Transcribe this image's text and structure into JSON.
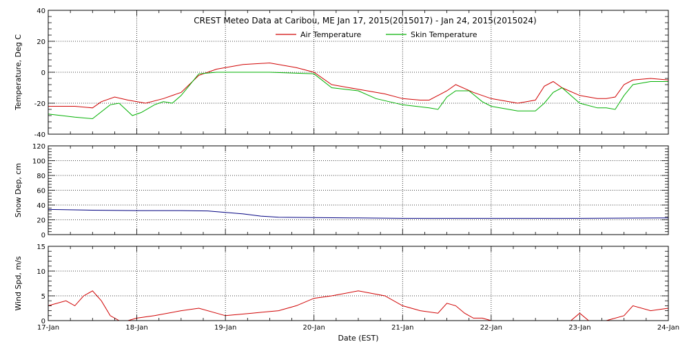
{
  "chart_data": {
    "type": "line",
    "title": "CREST Meteo Data at Caribou, ME   Jan 17, 2015(2015017) - Jan 24, 2015(2015024)",
    "xlabel": "Date (EST)",
    "x_ticks": [
      "17-Jan",
      "18-Jan",
      "19-Jan",
      "20-Jan",
      "21-Jan",
      "22-Jan",
      "23-Jan",
      "24-Jan"
    ],
    "xlim": [
      0,
      7
    ],
    "x_unit": "days since 17-Jan 00:00",
    "grid": true,
    "legend_position": "top-center",
    "panels": [
      {
        "ylabel": "Temperature, Deg C",
        "ylim": [
          -40,
          40
        ],
        "yticks": [
          -40,
          -20,
          0,
          20,
          40
        ],
        "series": [
          {
            "name": "Air Temperature",
            "color": "#d00000",
            "x": [
              0,
              0.3,
              0.5,
              0.6,
              0.75,
              0.9,
              1.1,
              1.3,
              1.5,
              1.7,
              1.9,
              2.0,
              2.2,
              2.5,
              2.8,
              3.0,
              3.2,
              3.5,
              3.8,
              4.0,
              4.2,
              4.3,
              4.5,
              4.6,
              4.8,
              5.0,
              5.2,
              5.3,
              5.5,
              5.6,
              5.7,
              5.8,
              6.0,
              6.2,
              6.3,
              6.4,
              6.5,
              6.6,
              6.8,
              7.0
            ],
            "y": [
              -22,
              -22,
              -23,
              -19,
              -16,
              -18,
              -20,
              -17,
              -13,
              -2,
              2,
              3,
              5,
              6,
              3,
              0,
              -8,
              -11,
              -14,
              -17,
              -18,
              -18,
              -12,
              -8,
              -13,
              -17,
              -19,
              -20,
              -18,
              -9,
              -6,
              -10,
              -15,
              -17,
              -17,
              -16,
              -8,
              -5,
              -4,
              -5
            ]
          },
          {
            "name": "Skin Temperature",
            "color": "#00b000",
            "x": [
              0,
              0.3,
              0.5,
              0.7,
              0.8,
              0.95,
              1.05,
              1.2,
              1.3,
              1.4,
              1.5,
              1.7,
              1.9,
              2.0,
              2.5,
              3.0,
              3.2,
              3.5,
              3.7,
              4.0,
              4.3,
              4.4,
              4.5,
              4.6,
              4.75,
              4.9,
              5.0,
              5.3,
              5.5,
              5.6,
              5.7,
              5.8,
              6.0,
              6.2,
              6.3,
              6.4,
              6.5,
              6.6,
              6.8,
              7.0
            ],
            "y": [
              -27,
              -29,
              -30,
              -21,
              -20,
              -28,
              -26,
              -21,
              -19,
              -20,
              -15,
              -1,
              0,
              0,
              0,
              -1,
              -10,
              -12,
              -17,
              -21,
              -23,
              -24,
              -16,
              -12,
              -12,
              -19,
              -22,
              -25,
              -25,
              -20,
              -13,
              -10,
              -20,
              -23,
              -23,
              -24,
              -15,
              -8,
              -6,
              -6
            ]
          }
        ]
      },
      {
        "ylabel": "Snow Dep, cm",
        "ylim": [
          0,
          120
        ],
        "yticks": [
          0,
          20,
          40,
          60,
          80,
          100,
          120
        ],
        "series": [
          {
            "name": "Snow Depth",
            "color": "#000080",
            "x": [
              0,
              0.5,
              1.0,
              1.5,
              1.8,
              2.0,
              2.2,
              2.4,
              2.6,
              3.0,
              3.5,
              4.0,
              5.0,
              6.0,
              7.0
            ],
            "y": [
              34,
              33,
              32.5,
              32.5,
              32,
              30,
              28,
              25,
              23.5,
              23,
              22.5,
              22,
              22,
              22,
              22.5
            ]
          }
        ]
      },
      {
        "ylabel": "Wind Spd, m/s",
        "ylim": [
          0,
          15
        ],
        "yticks": [
          0,
          5,
          10,
          15
        ],
        "series": [
          {
            "name": "Wind Speed",
            "color": "#d00000",
            "x": [
              0,
              0.2,
              0.3,
              0.4,
              0.5,
              0.6,
              0.7,
              0.8,
              0.9,
              1.0,
              1.2,
              1.5,
              1.7,
              2.0,
              2.3,
              2.6,
              2.8,
              3.0,
              3.2,
              3.5,
              3.8,
              4.0,
              4.2,
              4.4,
              4.5,
              4.6,
              4.7,
              4.8,
              4.9,
              5.0,
              5.3,
              5.6,
              5.9,
              6.0,
              6.1,
              6.3,
              6.5,
              6.6,
              6.8,
              7.0
            ],
            "y": [
              3,
              4,
              3,
              5,
              6,
              4,
              1,
              0,
              0,
              0.5,
              1,
              2,
              2.5,
              1,
              1.5,
              2,
              3,
              4.5,
              5,
              6,
              5,
              3,
              2,
              1.5,
              3.5,
              3,
              1.5,
              0.5,
              0.5,
              0,
              0,
              0,
              0,
              1.5,
              0,
              0,
              1,
              3,
              2,
              2.5
            ]
          }
        ]
      }
    ]
  }
}
